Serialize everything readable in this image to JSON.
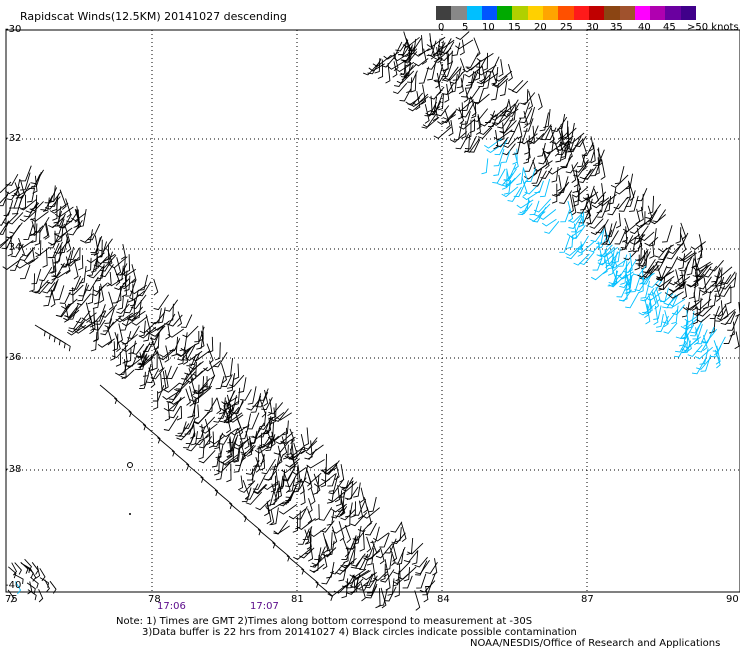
{
  "title": "Rapidscat Winds(12.5KM) 20141027 descending",
  "legend": {
    "colors": [
      "#404040",
      "#888888",
      "#00bfff",
      "#0055ff",
      "#00aa00",
      "#b0d000",
      "#ffd000",
      "#ffa500",
      "#ff5000",
      "#ff1a1a",
      "#c00000",
      "#8b4513",
      "#a0522d",
      "#ff00ff",
      "#b000b0",
      "#6a00a0",
      "#40008a"
    ],
    "labels": [
      "0",
      "5",
      "10",
      "15",
      "20",
      "25",
      "30",
      "35",
      "40",
      "45",
      ">50 knots"
    ]
  },
  "map": {
    "lat_labels": [
      "-30",
      "-32",
      "-34",
      "-36",
      "-38",
      "-40"
    ],
    "lon_labels": [
      "75",
      "78",
      "81",
      "84",
      "87",
      "90"
    ],
    "time_labels": [
      "17:06",
      "17:07"
    ],
    "barb_colors": {
      "default": "#000000",
      "light": "#00bfff"
    }
  },
  "notes": {
    "line1": "Note: 1) Times are GMT 2)Times along bottom correspond to measurement at -30S",
    "line2": "3)Data buffer is 22 hrs from 20141027 4) Black circles indicate possible contamination",
    "credit": "NOAA/NESDIS/Office of Research and Applications"
  }
}
